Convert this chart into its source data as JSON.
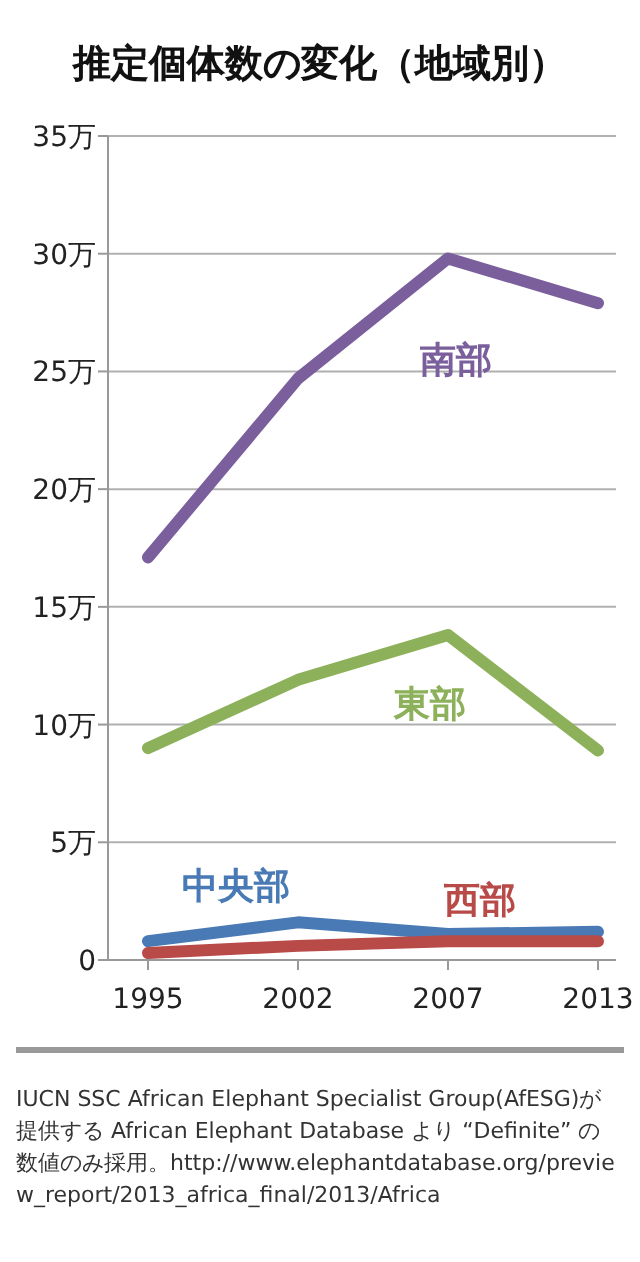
{
  "chart_data": {
    "type": "line",
    "title": "推定個体数の変化（地域別）",
    "categories": [
      "1995",
      "2002",
      "2007",
      "2013"
    ],
    "ylim": [
      0,
      35
    ],
    "yticks": [
      {
        "value": 0,
        "label": "0"
      },
      {
        "value": 5,
        "label": "5万"
      },
      {
        "value": 10,
        "label": "10万"
      },
      {
        "value": 15,
        "label": "15万"
      },
      {
        "value": 20,
        "label": "20万"
      },
      {
        "value": 25,
        "label": "25万"
      },
      {
        "value": 30,
        "label": "30万"
      },
      {
        "value": 35,
        "label": "35万"
      }
    ],
    "grid": "y",
    "marker": "none",
    "line_style": "solid",
    "series": [
      {
        "name": "南部",
        "color": "#7b5f9d",
        "values": [
          17.1,
          24.7,
          29.8,
          27.9
        ]
      },
      {
        "name": "東部",
        "color": "#8db15a",
        "values": [
          9.0,
          11.9,
          13.8,
          8.9
        ]
      },
      {
        "name": "中央部",
        "color": "#4a7ab5",
        "values": [
          0.8,
          1.6,
          1.1,
          1.2
        ]
      },
      {
        "name": "西部",
        "color": "#b84a48",
        "values": [
          0.3,
          0.6,
          0.8,
          0.8
        ]
      }
    ],
    "annotations": [
      "IUCN SSC African Elephant Specialist Group(AfESG)が提供する African Elephant Database より “Definite” の数値のみ採用。http://www.elephantdatabase.org/preview_report/2013_africa_final/2013/Africa"
    ]
  }
}
